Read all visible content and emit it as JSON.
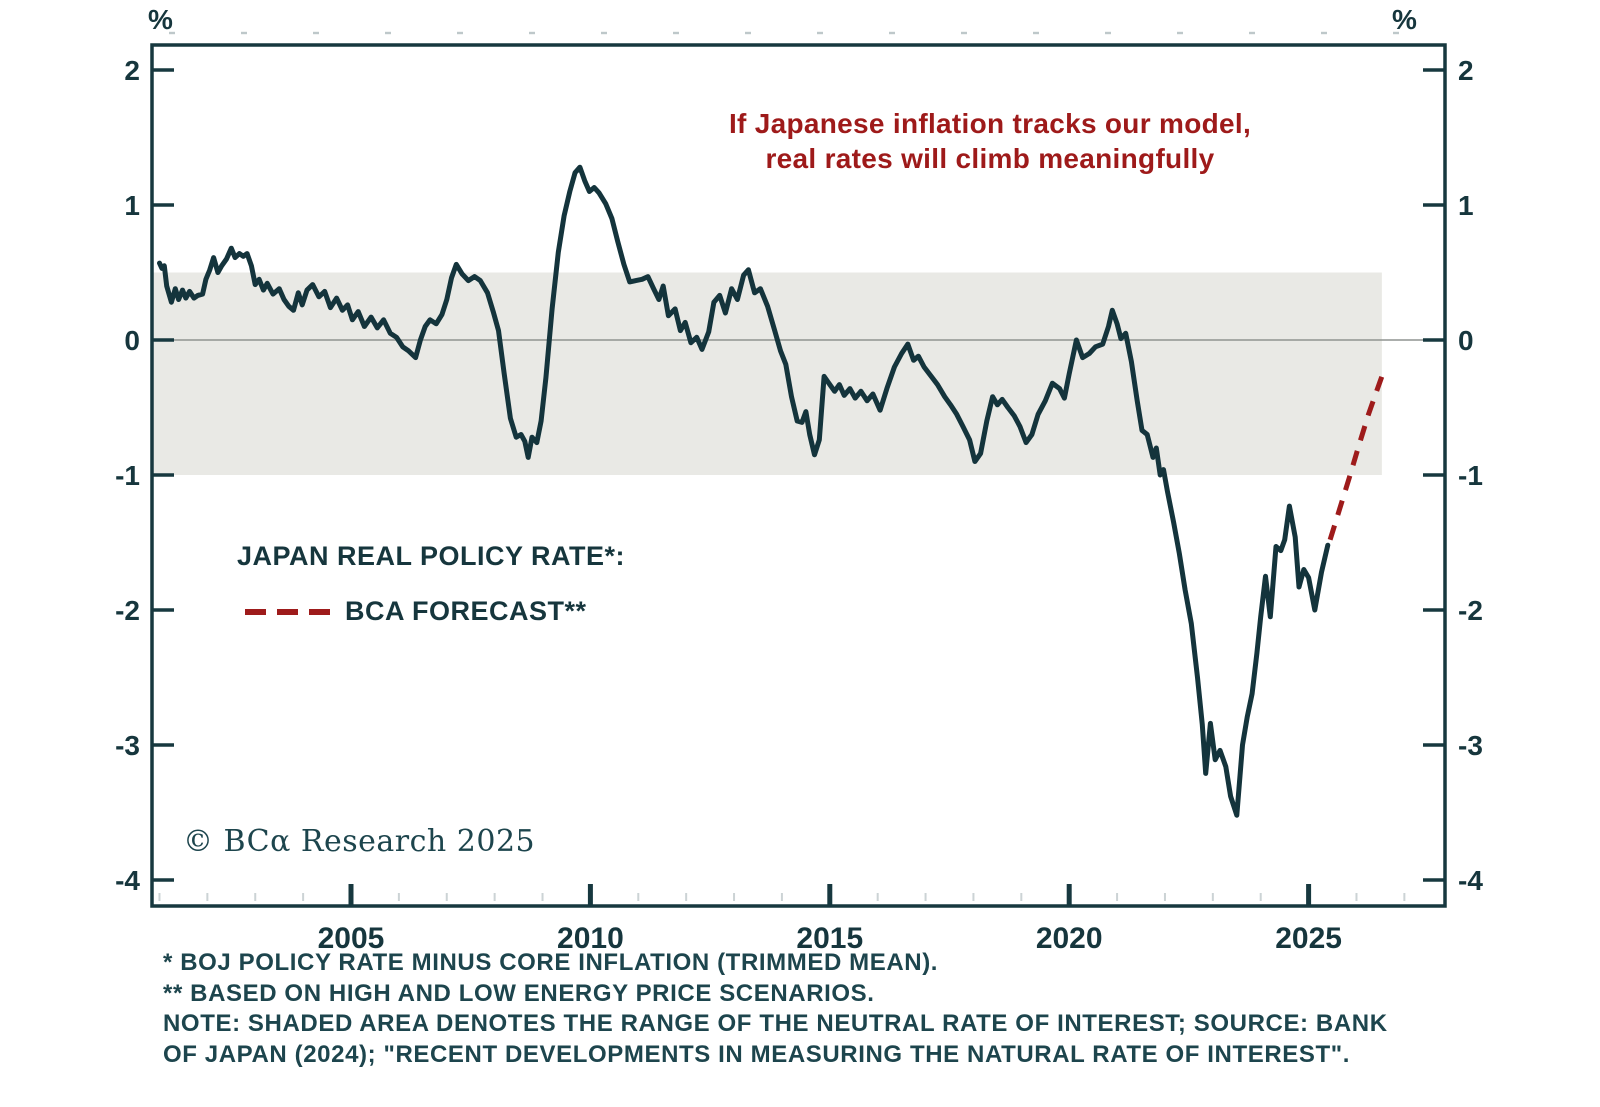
{
  "percent_left": "%",
  "percent_right": "%",
  "copyright": "© BCα Research 2025",
  "footnotes": [
    "* BOJ POLICY RATE MINUS CORE INFLATION (TRIMMED MEAN).",
    "** BASED ON HIGH AND LOW ENERGY PRICE SCENARIOS.",
    "NOTE: SHADED AREA DENOTES THE RANGE OF THE NEUTRAL RATE OF INTEREST; SOURCE: BANK",
    "OF JAPAN (2024); \"RECENT DEVELOPMENTS IN MEASURING THE NATURAL RATE OF INTEREST\"."
  ],
  "chart_data": {
    "type": "line",
    "title": "",
    "annotation": {
      "line1": "If Japanese inflation tracks our model,",
      "line2": "real rates will climb meaningfully",
      "color": "#9e1a1a"
    },
    "legend": {
      "actual": "JAPAN REAL POLICY RATE*:",
      "forecast": "BCA FORECAST**"
    },
    "colors": {
      "actual_line": "#14343c",
      "forecast_line": "#9e1b1b",
      "axis": "#17383f",
      "band": "#e9e9e5",
      "zero_line": "#8f9490",
      "label_text": "#16363d"
    },
    "y_axis": {
      "unit_label": "%",
      "ticks": [
        2,
        1,
        0,
        -1,
        -2,
        -3,
        -4
      ],
      "ylim": [
        -4.19,
        2.19
      ],
      "grid": "zero-line-only"
    },
    "x_axis": {
      "tick_years": [
        2005,
        2010,
        2015,
        2020,
        2025
      ],
      "xlim": [
        2000.85,
        2027.84
      ]
    },
    "neutral_band": {
      "top": 0.5,
      "bottom": -1.0,
      "start_year": 2000.85,
      "end_year": 2026.53
    },
    "legend_position": "left-middle",
    "series": [
      {
        "name": "JAPAN REAL POLICY RATE",
        "style": "solid",
        "color": "#14343c",
        "points": [
          [
            2001.0,
            0.57
          ],
          [
            2001.05,
            0.53
          ],
          [
            2001.1,
            0.55
          ],
          [
            2001.15,
            0.4
          ],
          [
            2001.25,
            0.28
          ],
          [
            2001.33,
            0.38
          ],
          [
            2001.4,
            0.3
          ],
          [
            2001.48,
            0.37
          ],
          [
            2001.55,
            0.31
          ],
          [
            2001.63,
            0.36
          ],
          [
            2001.72,
            0.31
          ],
          [
            2001.8,
            0.33
          ],
          [
            2001.9,
            0.34
          ],
          [
            2001.97,
            0.45
          ],
          [
            2002.05,
            0.52
          ],
          [
            2002.13,
            0.61
          ],
          [
            2002.22,
            0.5
          ],
          [
            2002.3,
            0.55
          ],
          [
            2002.4,
            0.6
          ],
          [
            2002.5,
            0.68
          ],
          [
            2002.58,
            0.61
          ],
          [
            2002.67,
            0.64
          ],
          [
            2002.75,
            0.62
          ],
          [
            2002.83,
            0.64
          ],
          [
            2002.92,
            0.55
          ],
          [
            2003.0,
            0.41
          ],
          [
            2003.08,
            0.45
          ],
          [
            2003.17,
            0.37
          ],
          [
            2003.25,
            0.42
          ],
          [
            2003.37,
            0.34
          ],
          [
            2003.5,
            0.38
          ],
          [
            2003.6,
            0.3
          ],
          [
            2003.7,
            0.25
          ],
          [
            2003.8,
            0.22
          ],
          [
            2003.9,
            0.35
          ],
          [
            2003.98,
            0.26
          ],
          [
            2004.08,
            0.37
          ],
          [
            2004.2,
            0.41
          ],
          [
            2004.33,
            0.32
          ],
          [
            2004.45,
            0.36
          ],
          [
            2004.57,
            0.24
          ],
          [
            2004.7,
            0.31
          ],
          [
            2004.82,
            0.22
          ],
          [
            2004.93,
            0.26
          ],
          [
            2005.03,
            0.15
          ],
          [
            2005.15,
            0.21
          ],
          [
            2005.28,
            0.1
          ],
          [
            2005.42,
            0.17
          ],
          [
            2005.55,
            0.09
          ],
          [
            2005.68,
            0.15
          ],
          [
            2005.82,
            0.05
          ],
          [
            2005.95,
            0.02
          ],
          [
            2006.08,
            -0.05
          ],
          [
            2006.2,
            -0.08
          ],
          [
            2006.35,
            -0.13
          ],
          [
            2006.45,
            0.0
          ],
          [
            2006.55,
            0.1
          ],
          [
            2006.65,
            0.15
          ],
          [
            2006.78,
            0.12
          ],
          [
            2006.9,
            0.19
          ],
          [
            2007.0,
            0.3
          ],
          [
            2007.1,
            0.46
          ],
          [
            2007.2,
            0.56
          ],
          [
            2007.32,
            0.49
          ],
          [
            2007.45,
            0.44
          ],
          [
            2007.58,
            0.47
          ],
          [
            2007.7,
            0.44
          ],
          [
            2007.85,
            0.35
          ],
          [
            2007.97,
            0.21
          ],
          [
            2008.08,
            0.07
          ],
          [
            2008.2,
            -0.25
          ],
          [
            2008.33,
            -0.58
          ],
          [
            2008.45,
            -0.72
          ],
          [
            2008.55,
            -0.7
          ],
          [
            2008.63,
            -0.75
          ],
          [
            2008.7,
            -0.87
          ],
          [
            2008.78,
            -0.72
          ],
          [
            2008.88,
            -0.76
          ],
          [
            2008.97,
            -0.6
          ],
          [
            2009.07,
            -0.28
          ],
          [
            2009.2,
            0.23
          ],
          [
            2009.33,
            0.65
          ],
          [
            2009.45,
            0.92
          ],
          [
            2009.57,
            1.1
          ],
          [
            2009.68,
            1.24
          ],
          [
            2009.78,
            1.28
          ],
          [
            2009.88,
            1.18
          ],
          [
            2009.98,
            1.1
          ],
          [
            2010.08,
            1.13
          ],
          [
            2010.18,
            1.09
          ],
          [
            2010.32,
            1.01
          ],
          [
            2010.45,
            0.9
          ],
          [
            2010.57,
            0.73
          ],
          [
            2010.7,
            0.56
          ],
          [
            2010.82,
            0.43
          ],
          [
            2010.95,
            0.44
          ],
          [
            2011.08,
            0.45
          ],
          [
            2011.2,
            0.47
          ],
          [
            2011.32,
            0.38
          ],
          [
            2011.43,
            0.3
          ],
          [
            2011.52,
            0.4
          ],
          [
            2011.63,
            0.18
          ],
          [
            2011.77,
            0.23
          ],
          [
            2011.88,
            0.07
          ],
          [
            2011.98,
            0.13
          ],
          [
            2012.1,
            -0.02
          ],
          [
            2012.22,
            0.02
          ],
          [
            2012.33,
            -0.07
          ],
          [
            2012.47,
            0.06
          ],
          [
            2012.58,
            0.28
          ],
          [
            2012.7,
            0.33
          ],
          [
            2012.82,
            0.2
          ],
          [
            2012.95,
            0.38
          ],
          [
            2013.07,
            0.3
          ],
          [
            2013.2,
            0.48
          ],
          [
            2013.3,
            0.52
          ],
          [
            2013.43,
            0.35
          ],
          [
            2013.55,
            0.38
          ],
          [
            2013.7,
            0.25
          ],
          [
            2013.85,
            0.07
          ],
          [
            2013.97,
            -0.08
          ],
          [
            2014.08,
            -0.18
          ],
          [
            2014.2,
            -0.42
          ],
          [
            2014.32,
            -0.6
          ],
          [
            2014.42,
            -0.61
          ],
          [
            2014.5,
            -0.53
          ],
          [
            2014.58,
            -0.7
          ],
          [
            2014.68,
            -0.85
          ],
          [
            2014.78,
            -0.74
          ],
          [
            2014.88,
            -0.27
          ],
          [
            2015.0,
            -0.33
          ],
          [
            2015.1,
            -0.38
          ],
          [
            2015.2,
            -0.33
          ],
          [
            2015.3,
            -0.41
          ],
          [
            2015.42,
            -0.36
          ],
          [
            2015.53,
            -0.43
          ],
          [
            2015.65,
            -0.38
          ],
          [
            2015.78,
            -0.45
          ],
          [
            2015.9,
            -0.4
          ],
          [
            2016.05,
            -0.52
          ],
          [
            2016.2,
            -0.35
          ],
          [
            2016.35,
            -0.2
          ],
          [
            2016.5,
            -0.1
          ],
          [
            2016.63,
            -0.03
          ],
          [
            2016.75,
            -0.15
          ],
          [
            2016.85,
            -0.12
          ],
          [
            2016.97,
            -0.2
          ],
          [
            2017.1,
            -0.26
          ],
          [
            2017.25,
            -0.33
          ],
          [
            2017.4,
            -0.42
          ],
          [
            2017.52,
            -0.48
          ],
          [
            2017.65,
            -0.55
          ],
          [
            2017.78,
            -0.64
          ],
          [
            2017.92,
            -0.74
          ],
          [
            2018.03,
            -0.9
          ],
          [
            2018.15,
            -0.84
          ],
          [
            2018.28,
            -0.6
          ],
          [
            2018.4,
            -0.42
          ],
          [
            2018.5,
            -0.48
          ],
          [
            2018.6,
            -0.44
          ],
          [
            2018.72,
            -0.5
          ],
          [
            2018.85,
            -0.56
          ],
          [
            2018.97,
            -0.64
          ],
          [
            2019.1,
            -0.76
          ],
          [
            2019.22,
            -0.7
          ],
          [
            2019.35,
            -0.55
          ],
          [
            2019.5,
            -0.45
          ],
          [
            2019.65,
            -0.32
          ],
          [
            2019.8,
            -0.36
          ],
          [
            2019.9,
            -0.43
          ],
          [
            2020.0,
            -0.25
          ],
          [
            2020.15,
            0.0
          ],
          [
            2020.28,
            -0.13
          ],
          [
            2020.42,
            -0.1
          ],
          [
            2020.55,
            -0.05
          ],
          [
            2020.7,
            -0.03
          ],
          [
            2020.82,
            0.1
          ],
          [
            2020.9,
            0.22
          ],
          [
            2021.0,
            0.12
          ],
          [
            2021.08,
            0.01
          ],
          [
            2021.18,
            0.05
          ],
          [
            2021.3,
            -0.16
          ],
          [
            2021.42,
            -0.45
          ],
          [
            2021.52,
            -0.67
          ],
          [
            2021.63,
            -0.7
          ],
          [
            2021.75,
            -0.87
          ],
          [
            2021.82,
            -0.8
          ],
          [
            2021.9,
            -1.0
          ],
          [
            2021.97,
            -0.96
          ],
          [
            2022.05,
            -1.12
          ],
          [
            2022.18,
            -1.35
          ],
          [
            2022.3,
            -1.58
          ],
          [
            2022.42,
            -1.85
          ],
          [
            2022.55,
            -2.1
          ],
          [
            2022.68,
            -2.5
          ],
          [
            2022.78,
            -2.85
          ],
          [
            2022.85,
            -3.21
          ],
          [
            2022.95,
            -2.84
          ],
          [
            2023.05,
            -3.11
          ],
          [
            2023.15,
            -3.04
          ],
          [
            2023.27,
            -3.16
          ],
          [
            2023.37,
            -3.38
          ],
          [
            2023.5,
            -3.52
          ],
          [
            2023.62,
            -3.0
          ],
          [
            2023.72,
            -2.79
          ],
          [
            2023.82,
            -2.62
          ],
          [
            2023.92,
            -2.32
          ],
          [
            2024.0,
            -2.05
          ],
          [
            2024.1,
            -1.75
          ],
          [
            2024.2,
            -2.05
          ],
          [
            2024.32,
            -1.53
          ],
          [
            2024.42,
            -1.56
          ],
          [
            2024.5,
            -1.48
          ],
          [
            2024.6,
            -1.23
          ],
          [
            2024.72,
            -1.46
          ],
          [
            2024.8,
            -1.83
          ],
          [
            2024.9,
            -1.7
          ],
          [
            2025.0,
            -1.76
          ],
          [
            2025.13,
            -2.0
          ],
          [
            2025.27,
            -1.72
          ],
          [
            2025.4,
            -1.52
          ]
        ]
      },
      {
        "name": "BCA FORECAST",
        "style": "dashed",
        "color": "#9e1b1b",
        "points": [
          [
            2025.45,
            -1.48
          ],
          [
            2025.65,
            -1.25
          ],
          [
            2025.85,
            -1.02
          ],
          [
            2026.05,
            -0.78
          ],
          [
            2026.25,
            -0.55
          ],
          [
            2026.4,
            -0.4
          ],
          [
            2026.53,
            -0.27
          ]
        ]
      }
    ]
  }
}
